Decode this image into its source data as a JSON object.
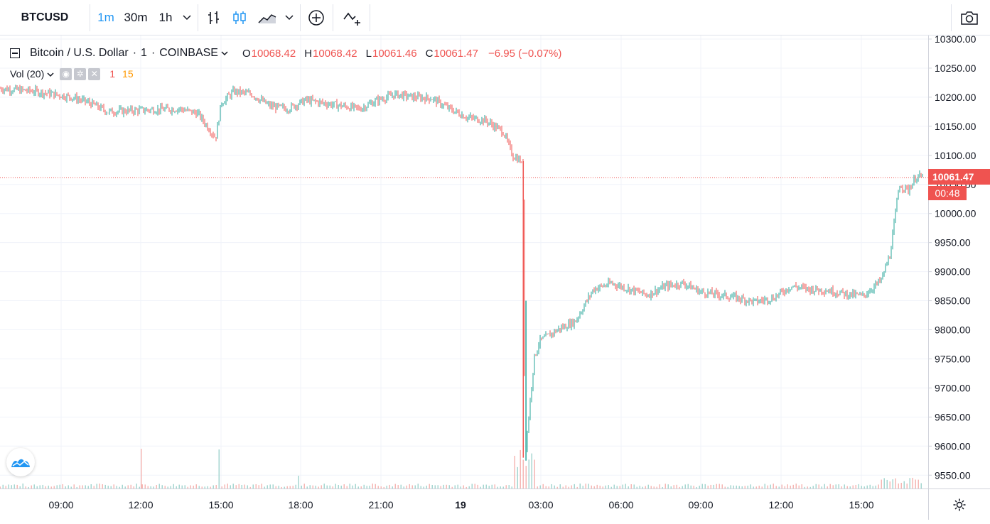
{
  "toolbar": {
    "symbol": "BTCUSD",
    "intervals": [
      "1m",
      "30m",
      "1h"
    ],
    "active_interval": "1m",
    "icons": [
      "bars-style-icon",
      "candles-style-icon",
      "area-style-icon",
      "chevron-down-icon",
      "add-compare-icon",
      "indicators-icon",
      "camera-icon"
    ]
  },
  "legend": {
    "title": "Bitcoin / U.S. Dollar",
    "sep1": "·",
    "interval": "1",
    "sep2": "·",
    "exchange": "COINBASE",
    "o_label": "O",
    "o_value": "10068.42",
    "h_label": "H",
    "h_value": "10068.42",
    "l_label": "L",
    "l_value": "10061.46",
    "c_label": "C",
    "c_value": "10061.47",
    "change": "−6.95 (−0.07%)"
  },
  "volume": {
    "label": "Vol (20)",
    "value1": "1",
    "value2": "15",
    "value1_color": "#ef5350",
    "value2_color": "#ff9800"
  },
  "last_price": {
    "value": "10061.47",
    "countdown": "00:48",
    "color": "#ef5350"
  },
  "colors": {
    "up": "#26a69a",
    "down": "#ef5350",
    "grid": "#f0f3fa",
    "accent": "#2196f3"
  },
  "chart_data": {
    "type": "line",
    "style": "candlestick",
    "y_axis_ticks": [
      "10300.00",
      "10250.00",
      "10200.00",
      "10150.00",
      "10100.00",
      "10050.00",
      "10000.00",
      "9950.00",
      "9900.00",
      "9850.00",
      "9800.00",
      "9750.00",
      "9700.00",
      "9650.00",
      "9600.00",
      "9550.00"
    ],
    "x_axis_ticks": [
      "09:00",
      "12:00",
      "15:00",
      "18:00",
      "21:00",
      "19",
      "03:00",
      "06:00",
      "09:00",
      "12:00",
      "15:00"
    ],
    "ylim": [
      9520,
      10310
    ],
    "series": [
      {
        "approx_close": [
          [
            0,
            10215
          ],
          [
            2,
            10210
          ],
          [
            4,
            10200
          ],
          [
            5,
            10190
          ],
          [
            6,
            10175
          ],
          [
            8,
            10178
          ],
          [
            10,
            10180
          ],
          [
            11,
            10172
          ],
          [
            12,
            10130
          ],
          [
            12.3,
            10190
          ],
          [
            13,
            10210
          ],
          [
            14,
            10205
          ],
          [
            15,
            10185
          ],
          [
            16,
            10180
          ],
          [
            17,
            10195
          ],
          [
            18,
            10190
          ],
          [
            19,
            10185
          ],
          [
            20,
            10180
          ],
          [
            21,
            10195
          ],
          [
            22,
            10205
          ],
          [
            23,
            10200
          ],
          [
            24,
            10198
          ],
          [
            25,
            10180
          ],
          [
            26,
            10165
          ],
          [
            27,
            10160
          ],
          [
            28,
            10140
          ],
          [
            28.5,
            10100
          ],
          [
            29,
            10090
          ],
          [
            29.1,
            10020
          ],
          [
            29.2,
            9580
          ],
          [
            29.4,
            9650
          ],
          [
            29.7,
            9750
          ],
          [
            30,
            9780
          ],
          [
            31,
            9800
          ],
          [
            32,
            9815
          ],
          [
            33,
            9870
          ],
          [
            34,
            9880
          ],
          [
            35,
            9870
          ],
          [
            36,
            9860
          ],
          [
            37,
            9875
          ],
          [
            38,
            9880
          ],
          [
            39,
            9865
          ],
          [
            40,
            9860
          ],
          [
            41,
            9855
          ],
          [
            42,
            9848
          ],
          [
            43,
            9855
          ],
          [
            44,
            9875
          ],
          [
            45,
            9870
          ],
          [
            46,
            9868
          ],
          [
            47,
            9862
          ],
          [
            48,
            9858
          ],
          [
            49,
            9885
          ],
          [
            49.5,
            9930
          ],
          [
            49.8,
            10000
          ],
          [
            50,
            10050
          ],
          [
            50.5,
            10040
          ],
          [
            51,
            10065
          ],
          [
            51.3,
            10061.47
          ]
        ]
      }
    ]
  }
}
